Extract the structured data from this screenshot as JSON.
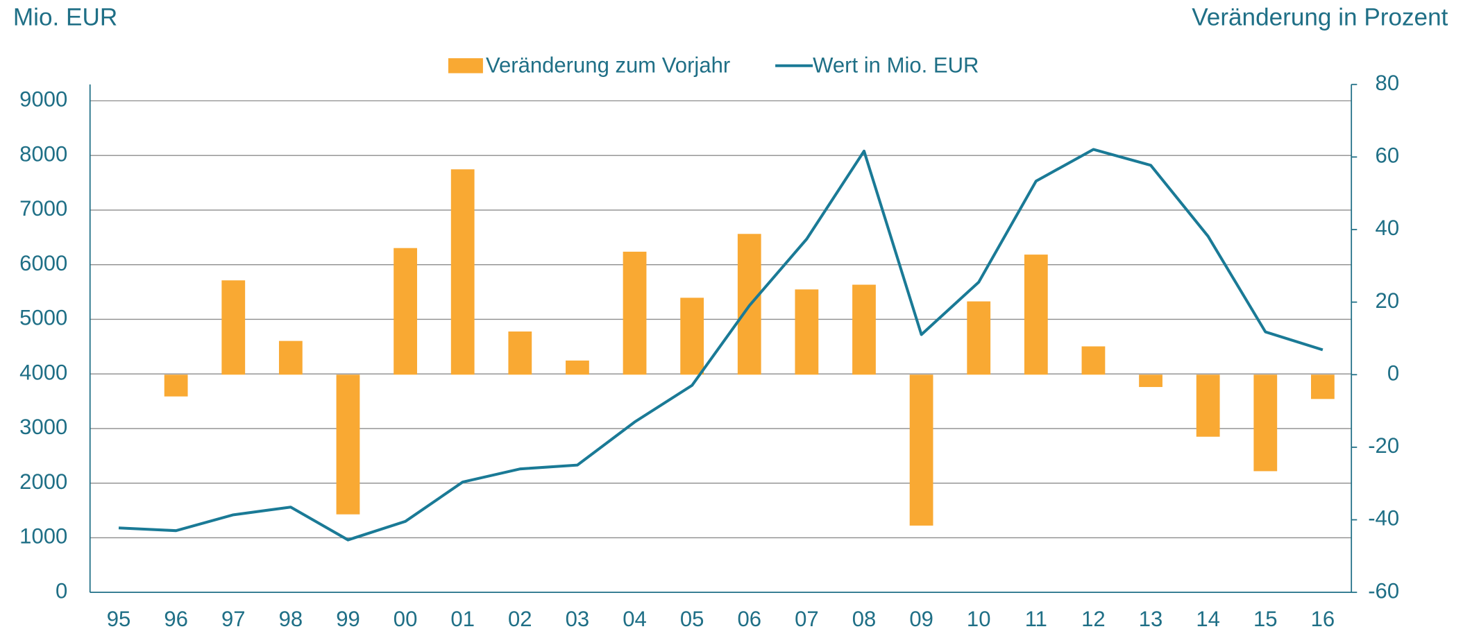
{
  "chart_data": {
    "type": "bar_line",
    "y_label": "Mio. EUR",
    "y2_label": "Veränderung in Prozent",
    "categories": [
      "95",
      "96",
      "97",
      "98",
      "99",
      "00",
      "01",
      "02",
      "03",
      "04",
      "05",
      "06",
      "07",
      "08",
      "09",
      "10",
      "11",
      "12",
      "13",
      "14",
      "15",
      "16"
    ],
    "series": [
      {
        "name": "Veränderung zum Vorjahr",
        "type": "bar",
        "axis": "y2",
        "color": "#f9a933",
        "values": [
          null,
          -6,
          26,
          9.3,
          -38.5,
          34.9,
          56.6,
          11.9,
          3.9,
          33.9,
          21.2,
          38.8,
          23.5,
          24.8,
          -41.6,
          20.2,
          33.1,
          7.8,
          -3.4,
          -17.1,
          -26.6,
          -6.7
        ]
      },
      {
        "name": "Wert in Mio. EUR",
        "type": "line",
        "axis": "y",
        "color": "#1a7a96",
        "values": [
          1180,
          1130,
          1420,
          1560,
          960,
          1300,
          2020,
          2260,
          2330,
          3120,
          3790,
          5250,
          6470,
          8080,
          4720,
          5680,
          7530,
          8110,
          7820,
          6520,
          4770,
          4440
        ]
      }
    ],
    "ylim": [
      0,
      9300
    ],
    "yticks": [
      0,
      1000,
      2000,
      3000,
      4000,
      5000,
      6000,
      7000,
      8000,
      9000
    ],
    "y2lim": [
      -60,
      80
    ],
    "y2ticks": [
      -60,
      -40,
      -20,
      0,
      20,
      40,
      60,
      80
    ],
    "grid": true,
    "legend": "top"
  }
}
